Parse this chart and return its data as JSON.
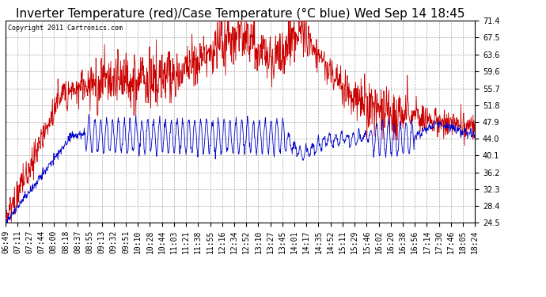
{
  "title": "Inverter Temperature (red)/Case Temperature (°C blue) Wed Sep 14 18:45",
  "copyright": "Copyright 2011 Cartronics.com",
  "yticks": [
    24.5,
    28.4,
    32.3,
    36.2,
    40.1,
    44.0,
    47.9,
    51.8,
    55.7,
    59.6,
    63.6,
    67.5,
    71.4
  ],
  "ylim": [
    24.5,
    71.4
  ],
  "x_labels": [
    "06:49",
    "07:11",
    "07:27",
    "07:44",
    "08:00",
    "08:18",
    "08:37",
    "08:55",
    "09:13",
    "09:32",
    "09:51",
    "10:10",
    "10:28",
    "10:44",
    "11:03",
    "11:21",
    "11:38",
    "11:55",
    "12:16",
    "12:34",
    "12:52",
    "13:10",
    "13:27",
    "13:45",
    "14:01",
    "14:17",
    "14:35",
    "14:52",
    "15:11",
    "15:29",
    "15:46",
    "16:02",
    "16:20",
    "16:38",
    "16:56",
    "17:14",
    "17:30",
    "17:46",
    "18:05",
    "18:24"
  ],
  "bg_color": "#ffffff",
  "plot_bg": "#ffffff",
  "grid_color": "#aaaaaa",
  "red_line_color": "#cc0000",
  "blue_line_color": "#0000cc",
  "title_fontsize": 11,
  "tick_fontsize": 7,
  "figwidth": 6.9,
  "figheight": 3.75,
  "dpi": 100
}
